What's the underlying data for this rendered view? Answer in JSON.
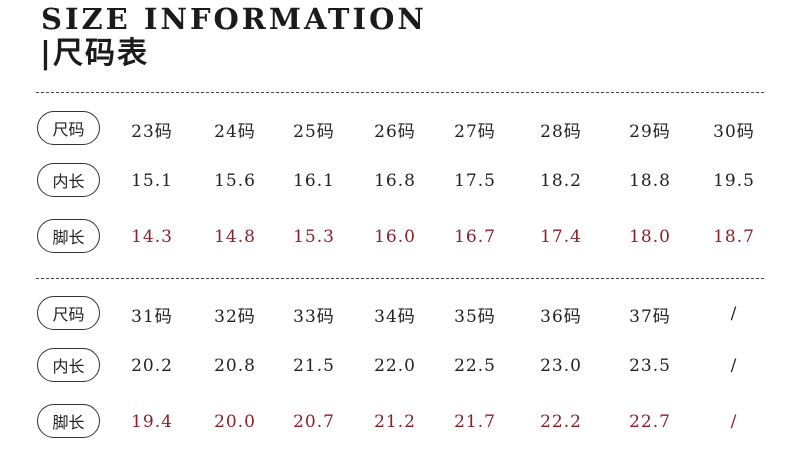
{
  "title_en": "SIZE INFORMATION",
  "title_cn": "|尺码表",
  "colors": {
    "text": "#222222",
    "accent": "#8a1f2a",
    "border": "#333333"
  },
  "tables": [
    {
      "rows": [
        {
          "label": "尺码",
          "values": [
            "23码",
            "24码",
            "25码",
            "26码",
            "27码",
            "28码",
            "29码",
            "30码"
          ],
          "accent": false
        },
        {
          "label": "内长",
          "values": [
            "15.1",
            "15.6",
            "16.1",
            "16.8",
            "17.5",
            "18.2",
            "18.8",
            "19.5"
          ],
          "accent": false
        },
        {
          "label": "脚长",
          "values": [
            "14.3",
            "14.8",
            "15.3",
            "16.0",
            "16.7",
            "17.4",
            "18.0",
            "18.7"
          ],
          "accent": true
        }
      ]
    },
    {
      "rows": [
        {
          "label": "尺码",
          "values": [
            "31码",
            "32码",
            "33码",
            "34码",
            "35码",
            "36码",
            "37码",
            "/"
          ],
          "accent": false
        },
        {
          "label": "内长",
          "values": [
            "20.2",
            "20.8",
            "21.5",
            "22.0",
            "22.5",
            "23.0",
            "23.5",
            "/"
          ],
          "accent": false
        },
        {
          "label": "脚长",
          "values": [
            "19.4",
            "20.0",
            "20.7",
            "21.2",
            "21.7",
            "22.2",
            "22.7",
            "/"
          ],
          "accent": true
        }
      ]
    }
  ]
}
